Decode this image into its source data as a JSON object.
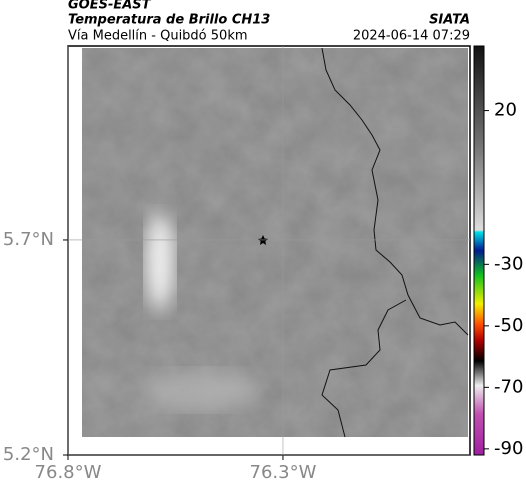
{
  "header": {
    "source": "GOES-EAST",
    "product": "Temperatura de Brillo CH13",
    "route": "Vía Medellín - Quibdó 50km",
    "agency": "SIATA",
    "timestamp": "2024-06-14 07:29"
  },
  "map": {
    "xlim": [
      -76.8,
      -75.865
    ],
    "ylim": [
      5.2,
      6.151
    ],
    "xticks": [
      {
        "value": -76.8,
        "label": "76.8°W"
      },
      {
        "value": -76.3,
        "label": "76.3°W"
      }
    ],
    "yticks": [
      {
        "value": 5.7,
        "label": "5.7°N"
      },
      {
        "value": 5.2,
        "label": "5.2°N"
      }
    ]
  },
  "colorbar": {
    "clim": [
      41,
      -92
    ],
    "ticks": [
      20,
      -30,
      -50,
      -70,
      -90
    ]
  }
}
